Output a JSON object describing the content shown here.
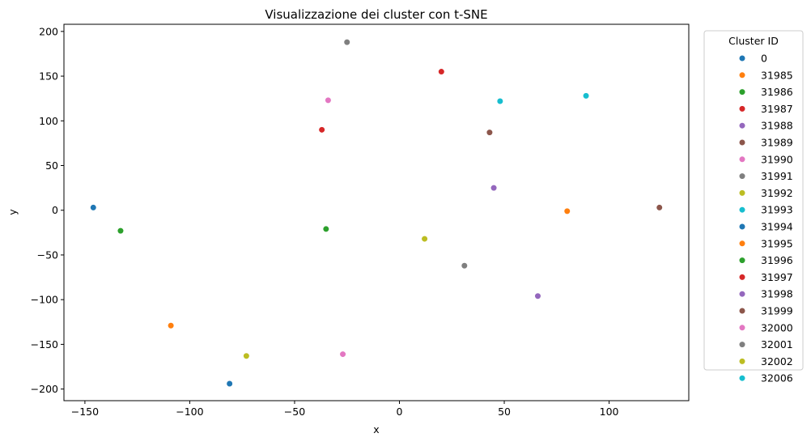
{
  "chart_data": {
    "type": "scatter",
    "title": "Visualizzazione dei cluster con t-SNE",
    "xlabel": "x",
    "ylabel": "y",
    "xlim": [
      -160,
      138
    ],
    "ylim": [
      -213,
      208
    ],
    "xticks": [
      -150,
      -100,
      -50,
      0,
      50,
      100
    ],
    "yticks": [
      -200,
      -150,
      -100,
      -50,
      0,
      50,
      100,
      150,
      200
    ],
    "grid": false,
    "legend": {
      "title": "Cluster ID",
      "placement": "outside-right"
    },
    "series": [
      {
        "name": "0",
        "color": "#1f77b4",
        "x": [
          -146
        ],
        "y": [
          3
        ]
      },
      {
        "name": "31985",
        "color": "#ff7f0e",
        "x": [
          80
        ],
        "y": [
          -1
        ]
      },
      {
        "name": "31986",
        "color": "#2ca02c",
        "x": [
          -35
        ],
        "y": [
          -21
        ]
      },
      {
        "name": "31987",
        "color": "#d62728",
        "x": [
          20
        ],
        "y": [
          155
        ]
      },
      {
        "name": "31988",
        "color": "#9467bd",
        "x": [
          45
        ],
        "y": [
          25
        ]
      },
      {
        "name": "31989",
        "color": "#8c564b",
        "x": [
          43
        ],
        "y": [
          87
        ]
      },
      {
        "name": "31990",
        "color": "#e377c2",
        "x": [
          -34
        ],
        "y": [
          123
        ]
      },
      {
        "name": "31991",
        "color": "#7f7f7f",
        "x": [
          -25
        ],
        "y": [
          188
        ]
      },
      {
        "name": "31992",
        "color": "#bcbd22",
        "x": [
          12
        ],
        "y": [
          -32
        ]
      },
      {
        "name": "31993",
        "color": "#17becf",
        "x": [
          48
        ],
        "y": [
          122
        ]
      },
      {
        "name": "31994",
        "color": "#1f77b4",
        "x": [
          -81
        ],
        "y": [
          -194
        ]
      },
      {
        "name": "31995",
        "color": "#ff7f0e",
        "x": [
          -109
        ],
        "y": [
          -129
        ]
      },
      {
        "name": "31996",
        "color": "#2ca02c",
        "x": [
          -133
        ],
        "y": [
          -23
        ]
      },
      {
        "name": "31997",
        "color": "#d62728",
        "x": [
          -37
        ],
        "y": [
          90
        ]
      },
      {
        "name": "31998",
        "color": "#9467bd",
        "x": [
          66
        ],
        "y": [
          -96
        ]
      },
      {
        "name": "31999",
        "color": "#8c564b",
        "x": [
          124
        ],
        "y": [
          3
        ]
      },
      {
        "name": "32000",
        "color": "#e377c2",
        "x": [
          -27
        ],
        "y": [
          -161
        ]
      },
      {
        "name": "32001",
        "color": "#7f7f7f",
        "x": [
          31
        ],
        "y": [
          -62
        ]
      },
      {
        "name": "32002",
        "color": "#bcbd22",
        "x": [
          -73
        ],
        "y": [
          -163
        ]
      },
      {
        "name": "32006",
        "color": "#17becf",
        "x": [
          89
        ],
        "y": [
          128
        ]
      }
    ]
  }
}
